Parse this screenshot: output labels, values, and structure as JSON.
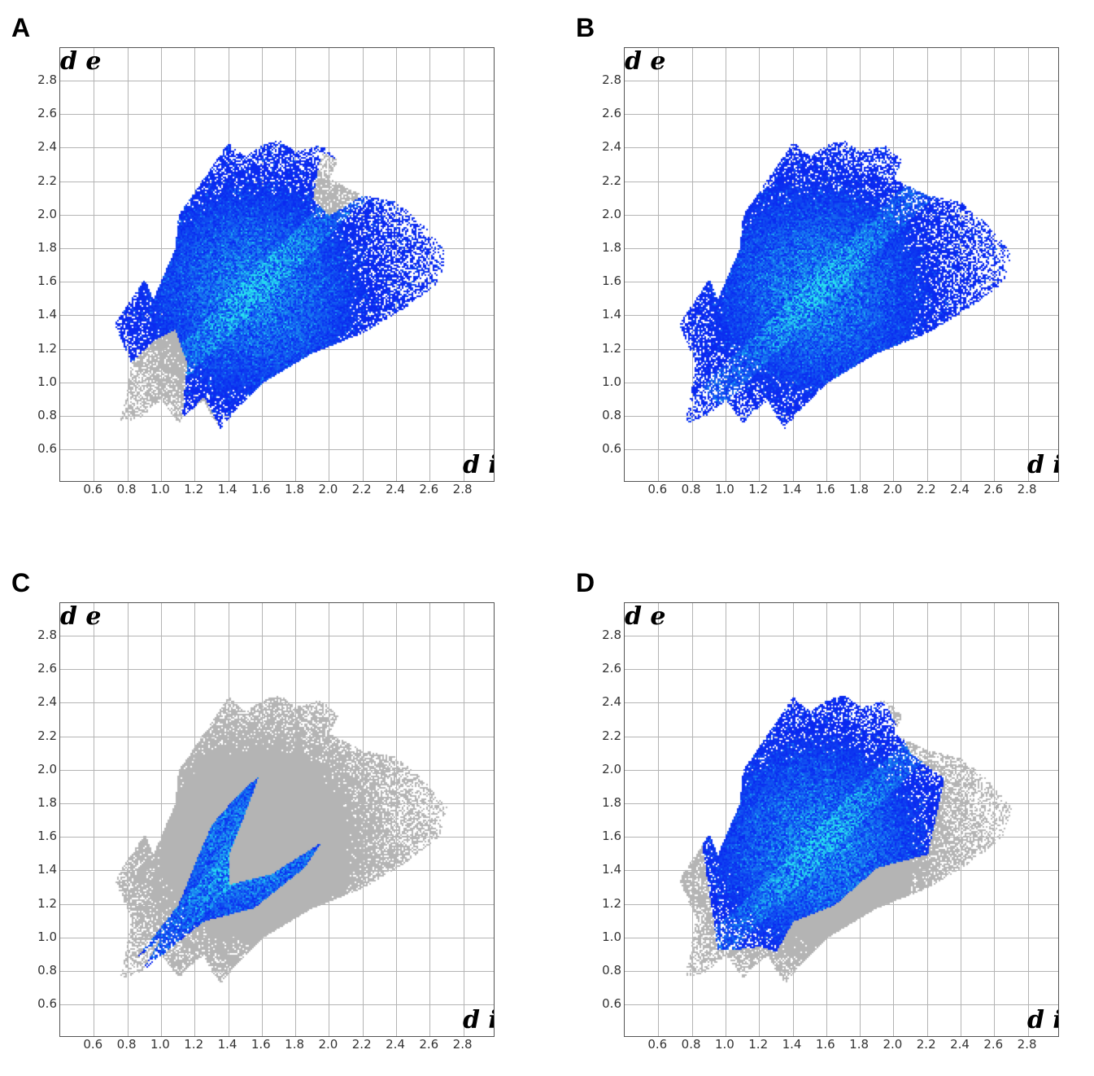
{
  "chart_data": [
    {
      "panel": "A",
      "type": "heatmap",
      "xlabel": "d i",
      "ylabel": "d e",
      "xlim": [
        0.4,
        3.0
      ],
      "ylim": [
        0.4,
        3.0
      ],
      "xticks": [
        "0.6",
        "0.8",
        "1.0",
        "1.2",
        "1.4",
        "1.6",
        "1.8",
        "2.0",
        "2.2",
        "2.4",
        "2.6",
        "2.8"
      ],
      "yticks": [
        "0.6",
        "0.8",
        "1.0",
        "1.2",
        "1.4",
        "1.6",
        "1.8",
        "2.0",
        "2.2",
        "2.4",
        "2.6",
        "2.8"
      ],
      "grid": true,
      "highlight": [
        [
          0.72,
          1.35
        ],
        [
          0.82,
          1.12
        ],
        [
          0.95,
          1.25
        ],
        [
          1.08,
          1.32
        ],
        [
          1.15,
          1.12
        ],
        [
          1.12,
          0.77
        ],
        [
          1.25,
          0.92
        ],
        [
          1.35,
          0.73
        ],
        [
          1.45,
          0.85
        ],
        [
          1.65,
          1.0
        ],
        [
          1.95,
          1.18
        ],
        [
          2.2,
          1.3
        ],
        [
          2.45,
          1.45
        ],
        [
          2.65,
          1.6
        ],
        [
          2.7,
          1.78
        ],
        [
          2.55,
          1.95
        ],
        [
          2.4,
          2.08
        ],
        [
          2.2,
          2.12
        ],
        [
          2.0,
          2.0
        ],
        [
          1.9,
          2.1
        ],
        [
          1.95,
          2.38
        ],
        [
          2.05,
          2.33
        ],
        [
          1.95,
          2.42
        ],
        [
          1.8,
          2.38
        ],
        [
          1.7,
          2.45
        ],
        [
          1.6,
          2.42
        ],
        [
          1.5,
          2.35
        ],
        [
          1.4,
          2.44
        ],
        [
          1.1,
          2.0
        ],
        [
          1.08,
          1.8
        ],
        [
          0.95,
          1.5
        ],
        [
          0.9,
          1.62
        ]
      ]
    },
    {
      "panel": "B",
      "type": "heatmap",
      "xlabel": "d i",
      "ylabel": "d e",
      "xlim": [
        0.4,
        3.0
      ],
      "ylim": [
        0.4,
        3.0
      ],
      "xticks": [
        "0.6",
        "0.8",
        "1.0",
        "1.2",
        "1.4",
        "1.6",
        "1.8",
        "2.0",
        "2.2",
        "2.4",
        "2.6",
        "2.8"
      ],
      "yticks": [
        "0.6",
        "0.8",
        "1.0",
        "1.2",
        "1.4",
        "1.6",
        "1.8",
        "2.0",
        "2.2",
        "2.4",
        "2.6",
        "2.8"
      ],
      "grid": true,
      "highlight": "full"
    },
    {
      "panel": "C",
      "type": "heatmap",
      "xlabel": "d i",
      "ylabel": "d e",
      "xlim": [
        0.4,
        3.0
      ],
      "ylim": [
        0.4,
        3.0
      ],
      "xticks": [
        "0.6",
        "0.8",
        "1.0",
        "1.2",
        "1.4",
        "1.6",
        "1.8",
        "2.0",
        "2.2",
        "2.4",
        "2.6",
        "2.8"
      ],
      "yticks": [
        "0.6",
        "0.8",
        "1.0",
        "1.2",
        "1.4",
        "1.6",
        "1.8",
        "2.0",
        "2.2",
        "2.4",
        "2.6",
        "2.8"
      ],
      "grid": true,
      "highlight": [
        [
          0.85,
          0.88
        ],
        [
          1.1,
          1.2
        ],
        [
          1.2,
          1.45
        ],
        [
          1.3,
          1.68
        ],
        [
          1.45,
          1.85
        ],
        [
          1.58,
          1.97
        ],
        [
          1.5,
          1.75
        ],
        [
          1.4,
          1.5
        ],
        [
          1.4,
          1.32
        ],
        [
          1.65,
          1.38
        ],
        [
          1.95,
          1.57
        ],
        [
          1.85,
          1.42
        ],
        [
          1.55,
          1.18
        ],
        [
          1.25,
          1.1
        ],
        [
          0.88,
          0.8
        ],
        [
          1.0,
          1.0
        ]
      ]
    },
    {
      "panel": "D",
      "type": "heatmap",
      "xlabel": "d i",
      "ylabel": "d e",
      "xlim": [
        0.4,
        3.0
      ],
      "ylim": [
        0.4,
        3.0
      ],
      "xticks": [
        "0.6",
        "0.8",
        "1.0",
        "1.2",
        "1.4",
        "1.6",
        "1.8",
        "2.0",
        "2.2",
        "2.4",
        "2.6",
        "2.8"
      ],
      "yticks": [
        "0.6",
        "0.8",
        "1.0",
        "1.2",
        "1.4",
        "1.6",
        "1.8",
        "2.0",
        "2.2",
        "2.4",
        "2.6",
        "2.8"
      ],
      "grid": true,
      "highlight": [
        [
          0.95,
          0.93
        ],
        [
          0.85,
          1.6
        ],
        [
          1.0,
          1.9
        ],
        [
          1.3,
          2.3
        ],
        [
          1.4,
          2.44
        ],
        [
          1.7,
          2.45
        ],
        [
          1.95,
          2.4
        ],
        [
          2.0,
          2.3
        ],
        [
          2.1,
          2.1
        ],
        [
          2.3,
          1.95
        ],
        [
          2.2,
          1.5
        ],
        [
          1.9,
          1.42
        ],
        [
          1.65,
          1.2
        ],
        [
          1.4,
          1.1
        ],
        [
          1.3,
          0.92
        ],
        [
          1.2,
          0.95
        ],
        [
          1.05,
          0.93
        ]
      ]
    }
  ],
  "full_region": [
    [
      0.75,
      0.76
    ],
    [
      0.78,
      0.88
    ],
    [
      0.82,
      1.12
    ],
    [
      0.72,
      1.35
    ],
    [
      0.9,
      1.62
    ],
    [
      0.95,
      1.5
    ],
    [
      1.08,
      1.8
    ],
    [
      1.1,
      2.0
    ],
    [
      1.4,
      2.44
    ],
    [
      1.5,
      2.35
    ],
    [
      1.6,
      2.42
    ],
    [
      1.7,
      2.45
    ],
    [
      1.8,
      2.38
    ],
    [
      1.95,
      2.42
    ],
    [
      2.05,
      2.33
    ],
    [
      2.0,
      2.22
    ],
    [
      2.2,
      2.12
    ],
    [
      2.4,
      2.08
    ],
    [
      2.55,
      1.95
    ],
    [
      2.7,
      1.78
    ],
    [
      2.65,
      1.6
    ],
    [
      2.45,
      1.45
    ],
    [
      2.2,
      1.3
    ],
    [
      1.9,
      1.18
    ],
    [
      1.6,
      1.0
    ],
    [
      1.45,
      0.85
    ],
    [
      1.35,
      0.73
    ],
    [
      1.3,
      0.8
    ],
    [
      1.25,
      0.9
    ],
    [
      1.15,
      0.82
    ],
    [
      1.1,
      0.76
    ],
    [
      1.0,
      0.9
    ],
    [
      0.88,
      0.8
    ],
    [
      0.82,
      0.78
    ]
  ],
  "colors": {
    "background_points": "#b4b4b4",
    "highlight_low": "#0a28f0",
    "highlight_high": "#20e0f0"
  },
  "panels": [
    "A",
    "B",
    "C",
    "D"
  ]
}
